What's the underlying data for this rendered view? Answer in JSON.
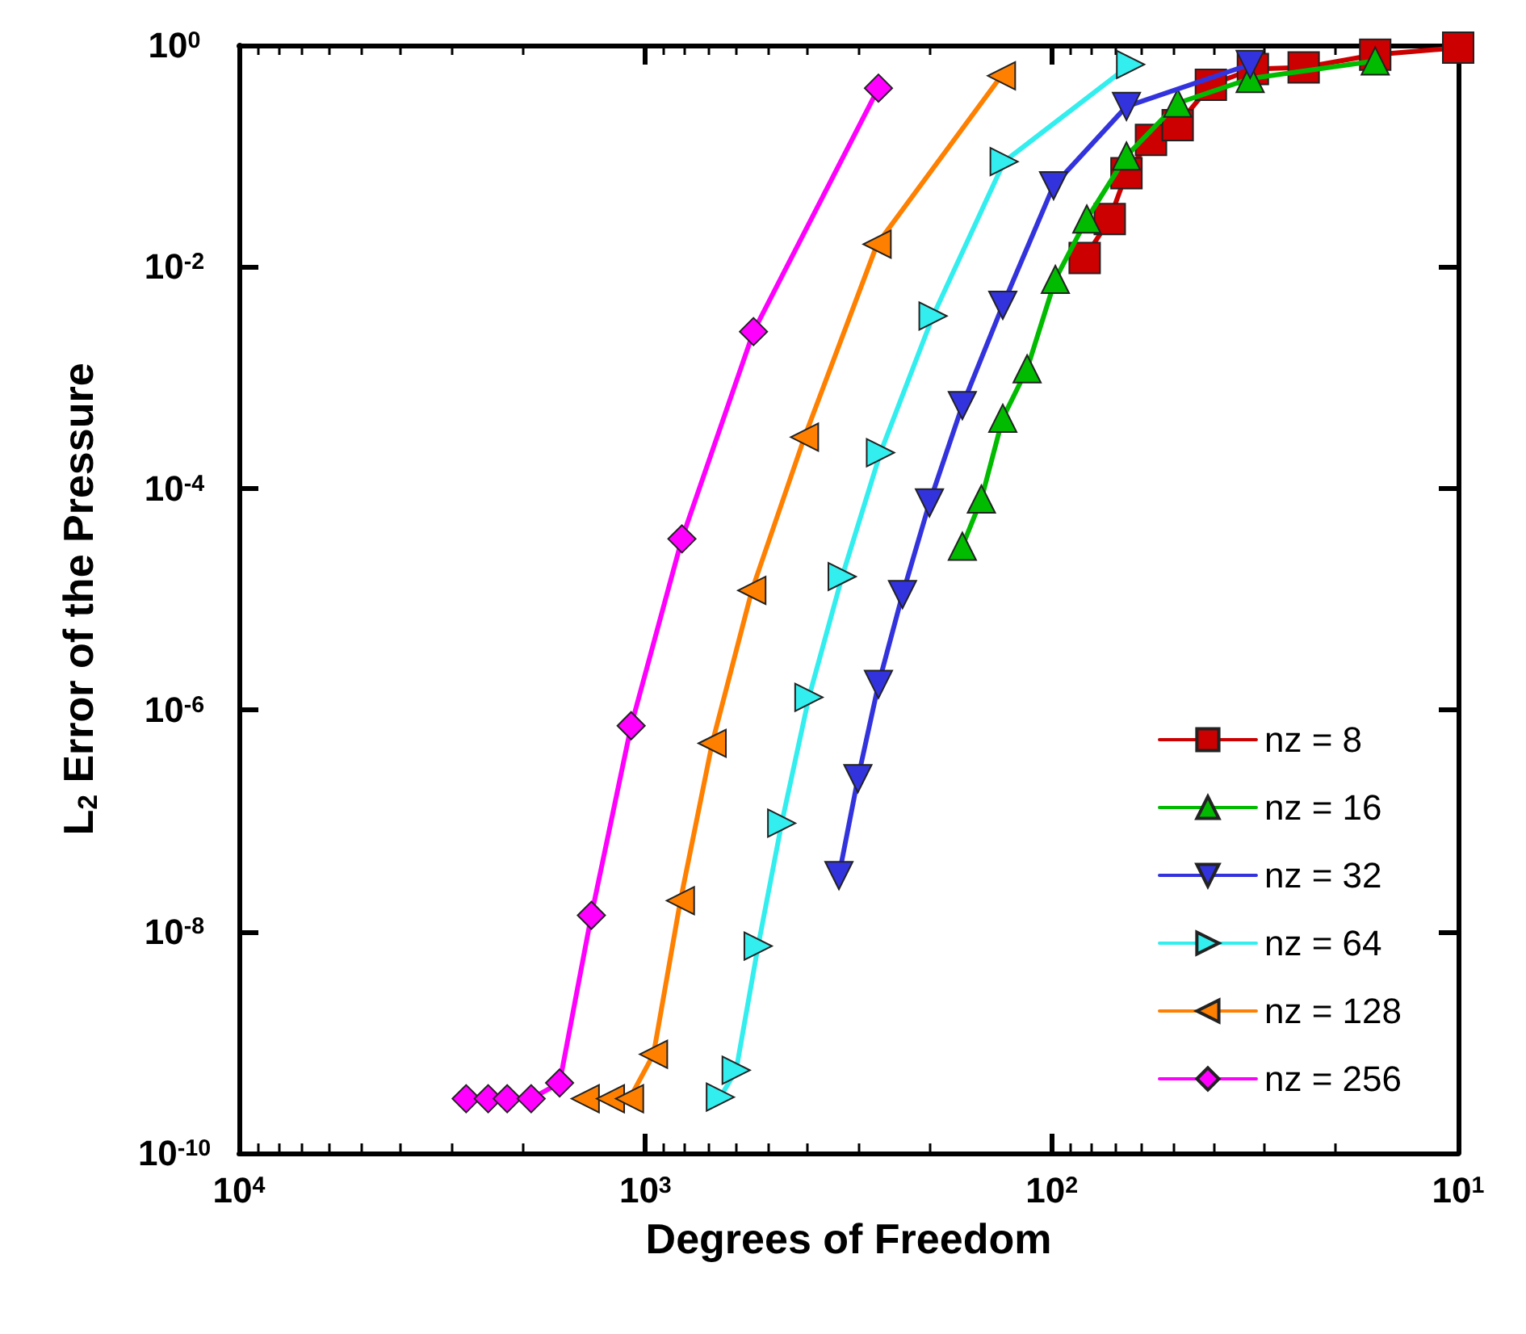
{
  "chart_data": {
    "type": "line",
    "xlabel": "Degrees of Freedom",
    "ylabel": "L$_{2}$ Error of the Pressure",
    "log": "xy",
    "grid": false,
    "legend": "bottom right",
    "line_style": "solid",
    "xlim": [
      10000,
      10
    ],
    "ylim": [
      1e-10,
      1
    ],
    "xticks": [
      {
        "value": 10000,
        "label": "10$^{4}$"
      },
      {
        "value": 9000,
        "label": null
      },
      {
        "value": 8000,
        "label": null
      },
      {
        "value": 7000,
        "label": null
      },
      {
        "value": 6000,
        "label": null
      },
      {
        "value": 5000,
        "label": null
      },
      {
        "value": 4000,
        "label": null
      },
      {
        "value": 3000,
        "label": null
      },
      {
        "value": 2000,
        "label": null
      },
      {
        "value": 1000,
        "label": "10$^{3}$"
      },
      {
        "value": 900,
        "label": null
      },
      {
        "value": 800,
        "label": null
      },
      {
        "value": 700,
        "label": null
      },
      {
        "value": 600,
        "label": null
      },
      {
        "value": 500,
        "label": null
      },
      {
        "value": 400,
        "label": null
      },
      {
        "value": 300,
        "label": null
      },
      {
        "value": 200,
        "label": null
      },
      {
        "value": 100,
        "label": "10$^{2}$"
      },
      {
        "value": 90,
        "label": null
      },
      {
        "value": 80,
        "label": null
      },
      {
        "value": 70,
        "label": null
      },
      {
        "value": 60,
        "label": null
      },
      {
        "value": 50,
        "label": null
      },
      {
        "value": 40,
        "label": null
      },
      {
        "value": 30,
        "label": null
      },
      {
        "value": 20,
        "label": null
      },
      {
        "value": 10,
        "label": "10$^{1}$"
      }
    ],
    "yticks": [
      {
        "value": 1e-10,
        "label": "10$^{-10}$"
      },
      {
        "value": 1e-08,
        "label": "10$^{-8}$"
      },
      {
        "value": 1e-06,
        "label": "10$^{-6}$"
      },
      {
        "value": 0.0001,
        "label": "10$^{-4}$"
      },
      {
        "value": 0.01,
        "label": "10$^{-2}$"
      },
      {
        "value": 1,
        "label": "10$^{0}$"
      }
    ],
    "series": [
      {
        "name": "nz = 8",
        "color": "#cc0000",
        "marker": "square",
        "x": [
          83,
          72,
          65.5,
          57,
          49,
          40.6,
          32,
          24,
          16,
          10
        ],
        "values": [
          0.012,
          0.027,
          0.07,
          0.14,
          0.19,
          0.44,
          0.61,
          0.63,
          0.82,
          0.95
        ]
      },
      {
        "name": "nz = 16",
        "color": "#00bb00",
        "marker": "triangle",
        "x": [
          166,
          149,
          132,
          115,
          98,
          82,
          65.5,
          49,
          32.5,
          16
        ],
        "values": [
          3e-05,
          8e-05,
          0.00043,
          0.0012,
          0.0077,
          0.027,
          0.1,
          0.3,
          0.5,
          0.72
        ]
      },
      {
        "name": "nz = 32",
        "color": "#3333dd",
        "marker": "triangle-down",
        "x": [
          334,
          300,
          267,
          233,
          200,
          166,
          132,
          99,
          65.5,
          32.5
        ],
        "values": [
          3.2e-08,
          2.4e-07,
          1.7e-06,
          1.1e-05,
          7.4e-05,
          0.00056,
          0.0045,
          0.054,
          0.28,
          0.67
        ]
      },
      {
        "name": "nz = 64",
        "color": "#33eeee",
        "marker": "triangle-right",
        "x": [
          654,
          598,
          528,
          462,
          396,
          328,
          264,
          196,
          131,
          64
        ],
        "values": [
          3.2e-10,
          5.6e-10,
          7.4e-09,
          9.5e-08,
          1.3e-06,
          1.6e-05,
          0.00021,
          0.0036,
          0.089,
          0.67
        ]
      },
      {
        "name": "nz = 128",
        "color": "#ff8000",
        "marker": "triangle-left",
        "x": [
          1406,
          1219,
          1094,
          955,
          820,
          685,
          547,
          406,
          269,
          133
        ],
        "values": [
          3.1e-10,
          3.1e-10,
          3.1e-10,
          7.8e-10,
          1.9e-08,
          5e-07,
          1.2e-05,
          0.00029,
          0.016,
          0.53
        ]
      },
      {
        "name": "nz = 256",
        "color": "#ff00ff",
        "marker": "diamond",
        "x": [
          2761,
          2437,
          2188,
          1910,
          1626,
          1358,
          1084,
          813,
          542,
          267
        ],
        "values": [
          3.1e-10,
          3.1e-10,
          3.1e-10,
          3.1e-10,
          4.3e-10,
          1.4e-08,
          7.2e-07,
          3.5e-05,
          0.0026,
          0.41
        ]
      }
    ]
  }
}
